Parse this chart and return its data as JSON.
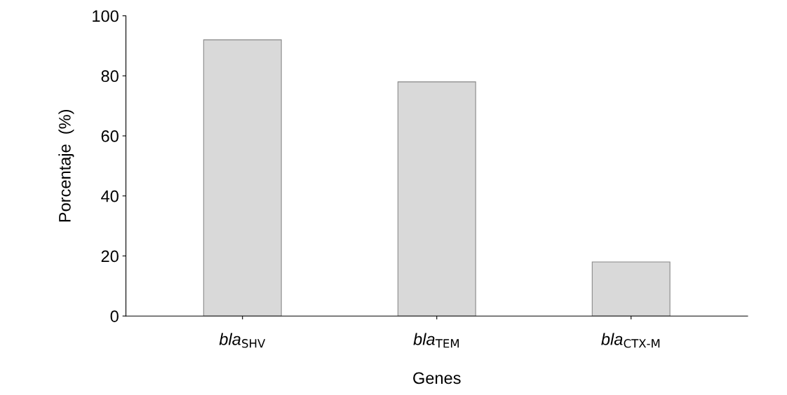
{
  "chart_data": {
    "type": "bar",
    "categories": [
      "bla$_{SHV}$",
      "bla$_{TEM}$",
      "bla$_{CTX-M}$"
    ],
    "values": [
      92,
      78,
      18
    ],
    "color": "#d9d9d9",
    "xlabel": "Genes",
    "ylabel": "Porcentaje  (%)",
    "ylim": [
      0,
      100
    ],
    "yticks": [
      0,
      20,
      40,
      60,
      80,
      100
    ],
    "grid": false
  }
}
